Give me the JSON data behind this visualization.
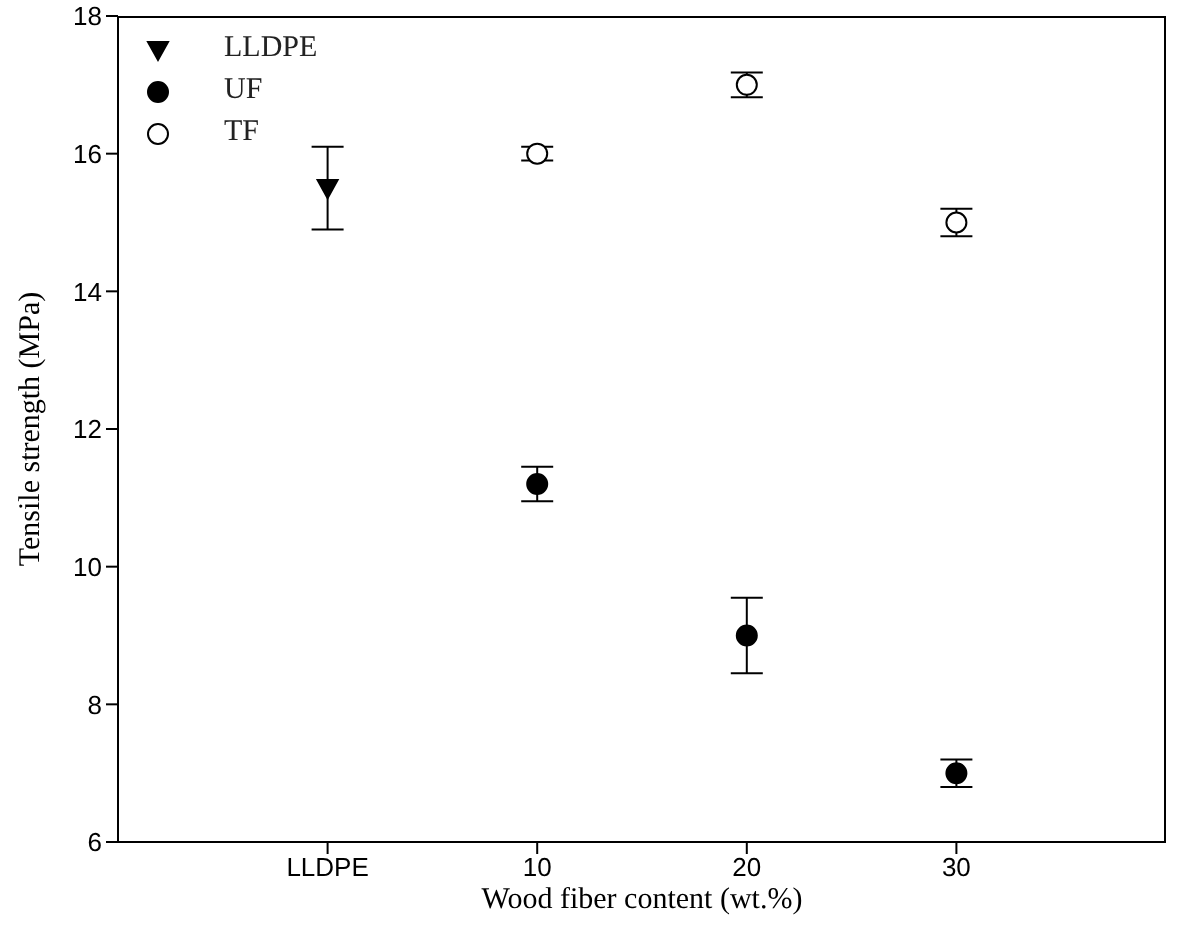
{
  "chart_data": {
    "type": "scatter",
    "xlabel": "Wood fiber content (wt.%)",
    "ylabel": "Tensile strength (MPa)",
    "categories": [
      "LLDPE",
      "10",
      "20",
      "30"
    ],
    "series": [
      {
        "name": "LLDPE",
        "color": "#000000",
        "marker": "triangle",
        "values": [
          15.5,
          null,
          null,
          null
        ],
        "errors": [
          0.6,
          null,
          null,
          null
        ]
      },
      {
        "name": "UF",
        "color": "#000000",
        "marker": "circle",
        "values": [
          null,
          11.2,
          9.0,
          7.0
        ],
        "errors": [
          null,
          0.25,
          0.55,
          0.2
        ]
      },
      {
        "name": "TF",
        "color": "#ffffff",
        "marker": "circle",
        "values": [
          null,
          16.0,
          17.0,
          15.0
        ],
        "errors": [
          null,
          0.1,
          0.18,
          0.2
        ]
      }
    ],
    "ylim": [
      6,
      18
    ],
    "yticks": [
      6,
      8,
      10,
      12,
      14,
      16,
      18
    ],
    "grid": false,
    "legend": "top left"
  }
}
